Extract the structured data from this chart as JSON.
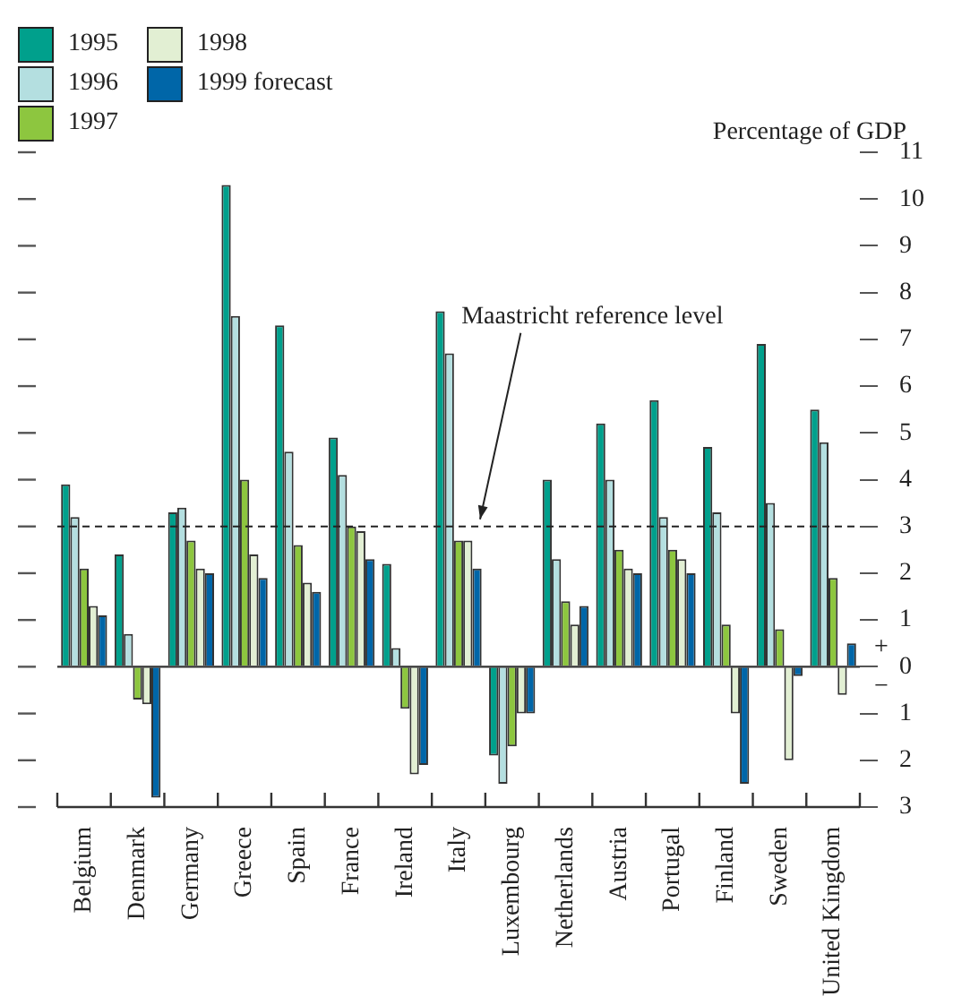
{
  "chart_data": {
    "type": "bar",
    "ylabel": "Percentage of GDP",
    "categories": [
      "Belgium",
      "Denmark",
      "Germany",
      "Greece",
      "Spain",
      "France",
      "Ireland",
      "Italy",
      "Luxembourg",
      "Netherlands",
      "Austria",
      "Portugal",
      "Finland",
      "Sweden",
      "United Kingdom"
    ],
    "series": [
      {
        "name": "1995",
        "color": "#00a08c",
        "values": [
          3.9,
          2.4,
          3.3,
          10.3,
          7.3,
          4.9,
          2.2,
          7.6,
          -1.9,
          4.0,
          5.2,
          5.7,
          4.7,
          6.9,
          5.5
        ]
      },
      {
        "name": "1996",
        "color": "#b4dfe0",
        "values": [
          3.2,
          0.7,
          3.4,
          7.5,
          4.6,
          4.1,
          0.4,
          6.7,
          -2.5,
          2.3,
          4.0,
          3.2,
          3.3,
          3.5,
          4.8
        ]
      },
      {
        "name": "1997",
        "color": "#8dc63f",
        "values": [
          2.1,
          -0.7,
          2.7,
          4.0,
          2.6,
          3.0,
          -0.9,
          2.7,
          -1.7,
          1.4,
          2.5,
          2.5,
          0.9,
          0.8,
          1.9
        ]
      },
      {
        "name": "1998",
        "color": "#e2efd3",
        "values": [
          1.3,
          -0.8,
          2.1,
          2.4,
          1.8,
          2.9,
          -2.3,
          2.7,
          -1.0,
          0.9,
          2.1,
          2.3,
          -1.0,
          -2.0,
          -0.6
        ]
      },
      {
        "name": "1999 forecast",
        "color": "#0066a8",
        "values": [
          1.1,
          -2.8,
          2.0,
          1.9,
          1.6,
          2.3,
          -2.1,
          2.1,
          -1.0,
          1.3,
          2.0,
          2.0,
          -2.5,
          -0.2,
          0.5
        ]
      }
    ],
    "ylim": [
      -3,
      11
    ],
    "yticks": [
      {
        "value": -3,
        "label": "3"
      },
      {
        "value": -2,
        "label": "2"
      },
      {
        "value": -1,
        "label": "1"
      },
      0,
      1,
      2,
      3,
      4,
      5,
      6,
      7,
      8,
      9,
      10,
      11
    ],
    "ref_lines": [
      {
        "axis": "y",
        "value": 3,
        "label": "Maastricht reference level",
        "line_style": "dashed",
        "color": "#222222"
      }
    ],
    "annotations": [
      "+",
      "−"
    ],
    "grid": false,
    "legend": "top left"
  }
}
